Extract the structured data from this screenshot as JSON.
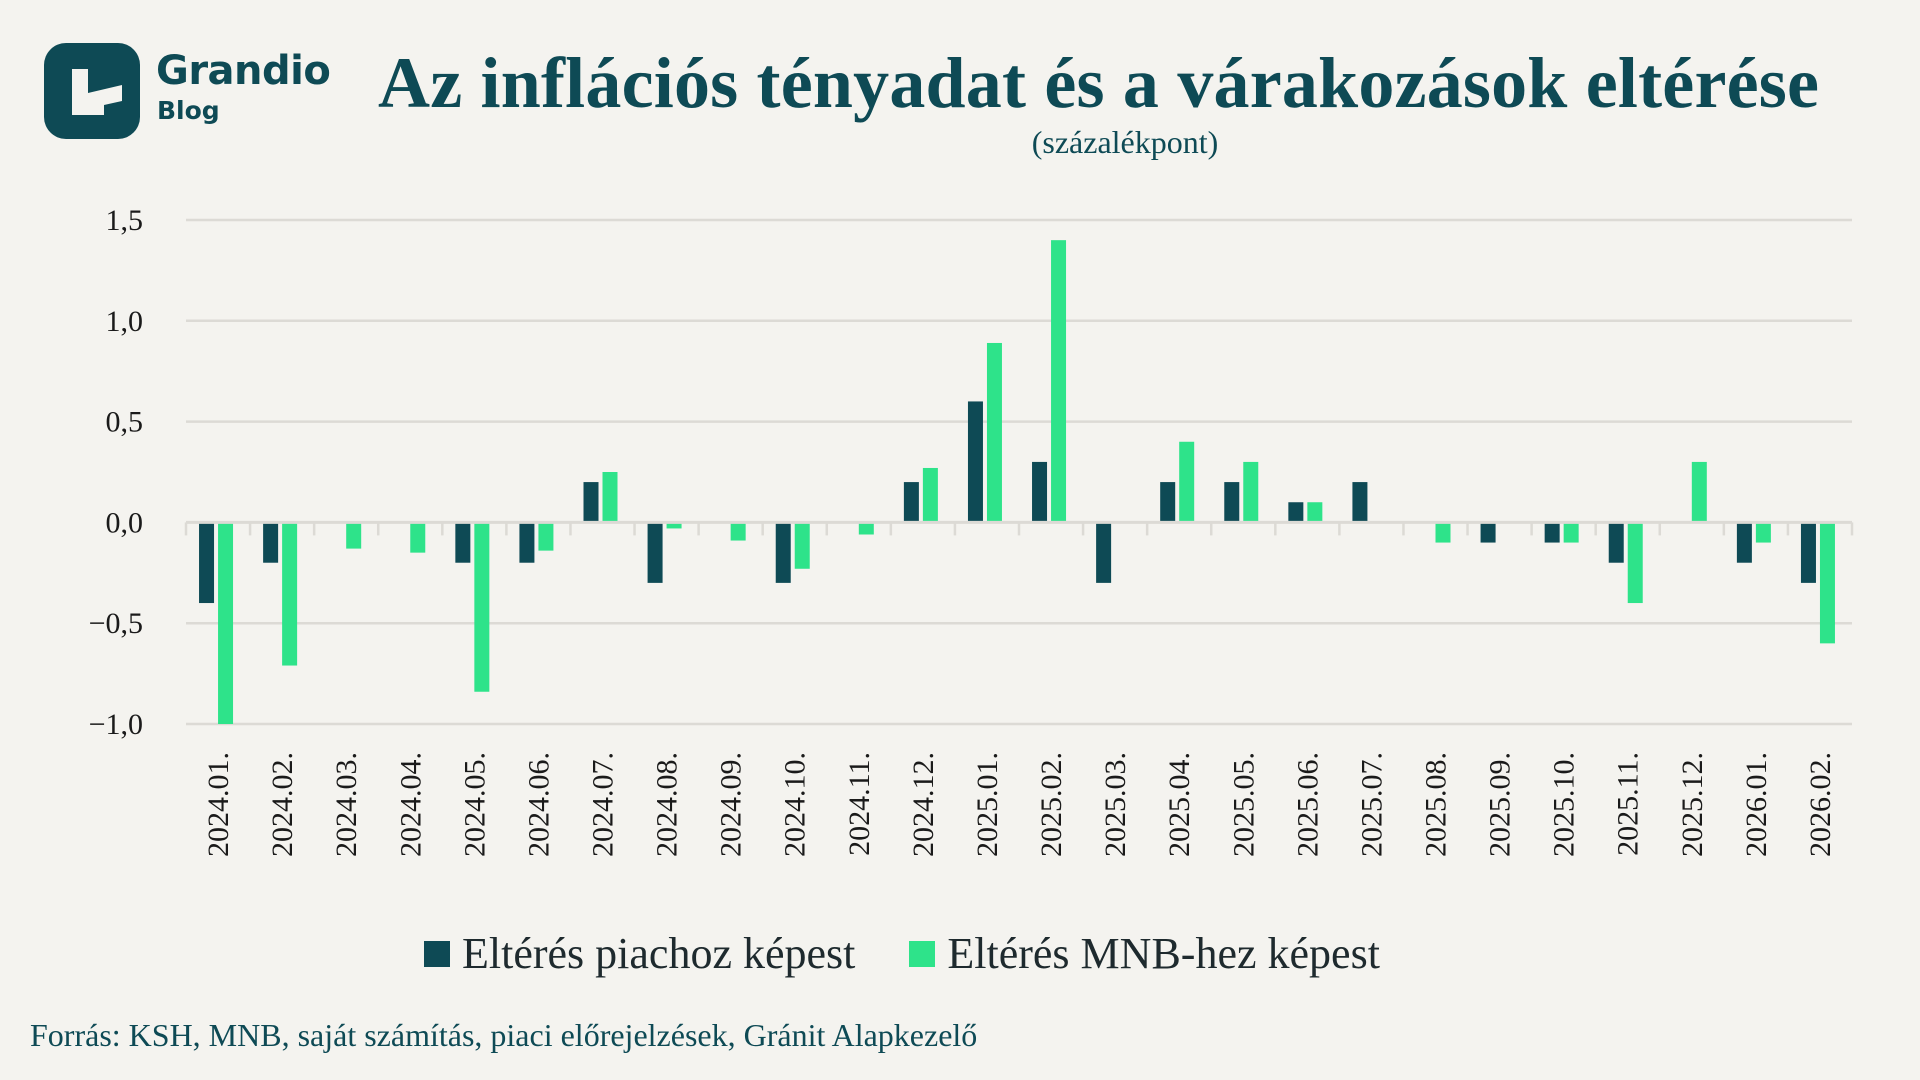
{
  "logo": {
    "name": "Grandio",
    "sub": "Blog"
  },
  "header": {
    "title": "Az inflációs tényadat és a várakozások eltérése",
    "subtitle": "(százalékpont)"
  },
  "colors": {
    "market": "#0e4a55",
    "mnb": "#2ee38a",
    "background": "#f4f3ef",
    "grid": "#dcdad5"
  },
  "legend": [
    {
      "label": "Eltérés piachoz képest",
      "color": "#0e4a55"
    },
    {
      "label": "Eltérés MNB-hez képest",
      "color": "#2ee38a"
    }
  ],
  "source": "Forrás: KSH, MNB, saját számítás, piaci előrejelzések, Gránit Alapkezelő",
  "chart_data": {
    "type": "bar",
    "title": "Az inflációs tényadat és a várakozások eltérése",
    "subtitle": "(százalékpont)",
    "xlabel": "",
    "ylabel": "",
    "ylim": [
      -1.0,
      1.5
    ],
    "yticks": [
      1.5,
      1.0,
      0.5,
      0.0,
      -0.5,
      -1.0
    ],
    "ytick_labels": [
      "1,5",
      "1,0",
      "0,5",
      "0,0",
      "−0,5",
      "−1,0"
    ],
    "grid": true,
    "legend_position": "bottom",
    "categories": [
      "2024.01.",
      "2024.02.",
      "2024.03.",
      "2024.04.",
      "2024.05.",
      "2024.06.",
      "2024.07.",
      "2024.08.",
      "2024.09.",
      "2024.10.",
      "2024.11.",
      "2024.12.",
      "2025.01.",
      "2025.02.",
      "2025.03.",
      "2025.04.",
      "2025.05.",
      "2025.06.",
      "2025.07.",
      "2025.08.",
      "2025.09.",
      "2025.10.",
      "2025.11.",
      "2025.12.",
      "2026.01.",
      "2026.02."
    ],
    "series": [
      {
        "name": "Eltérés piachoz képest",
        "values": [
          -0.4,
          -0.2,
          0.0,
          0.0,
          -0.2,
          -0.2,
          0.2,
          -0.3,
          0.0,
          -0.3,
          0.0,
          0.2,
          0.6,
          0.3,
          -0.3,
          0.2,
          0.2,
          0.1,
          0.2,
          0.0,
          -0.1,
          -0.1,
          -0.2,
          0.0,
          -0.2,
          -0.3
        ]
      },
      {
        "name": "Eltérés MNB-hez képest",
        "values": [
          -1.0,
          -0.71,
          -0.13,
          -0.15,
          -0.84,
          -0.14,
          0.25,
          -0.03,
          -0.09,
          -0.23,
          -0.06,
          0.27,
          0.89,
          1.4,
          0.0,
          0.4,
          0.3,
          0.1,
          0.0,
          -0.1,
          0.0,
          -0.1,
          -0.4,
          0.3,
          -0.1,
          -0.6
        ]
      }
    ]
  }
}
